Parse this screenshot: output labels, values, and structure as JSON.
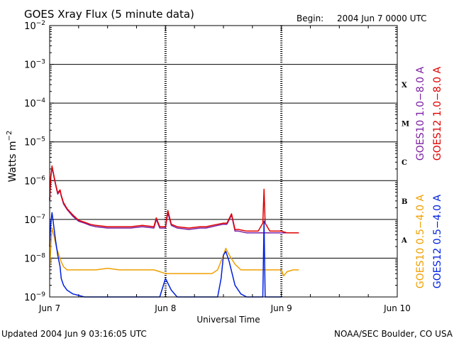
{
  "header": {
    "title": "GOES Xray Flux (5 minute data)",
    "begin_label": "Begin:",
    "begin_value": "2004 Jun 7 0000 UTC"
  },
  "footer": {
    "updated": "Updated 2004 Jun  9 03:16:05 UTC",
    "source": "NOAA/SEC Boulder, CO USA"
  },
  "colors": {
    "goes10_long": "#7b1fa2",
    "goes12_long": "#e00000",
    "goes10_short": "#f0a000",
    "goes12_short": "#0020e0",
    "grid": "#000000"
  },
  "chart_data": {
    "type": "line",
    "xlabel": "Universal Time",
    "ylabel": "Watts m",
    "ylabel_exponent": "−2",
    "x_ticks": [
      "Jun 7",
      "Jun 8",
      "Jun 9",
      "Jun 10"
    ],
    "xlim_days": [
      0,
      3
    ],
    "y_scale": "log",
    "ylim": [
      1e-09,
      0.01
    ],
    "y_ticks": [
      {
        "value": 0.01,
        "label": "10",
        "exp": "−2"
      },
      {
        "value": 0.001,
        "label": "10",
        "exp": "−3"
      },
      {
        "value": 0.0001,
        "label": "10",
        "exp": "−4"
      },
      {
        "value": 1e-05,
        "label": "10",
        "exp": "−5"
      },
      {
        "value": 1e-06,
        "label": "10",
        "exp": "−6"
      },
      {
        "value": 1e-07,
        "label": "10",
        "exp": "−7"
      },
      {
        "value": 1e-08,
        "label": "10",
        "exp": "−8"
      },
      {
        "value": 1e-09,
        "label": "10",
        "exp": "−9"
      }
    ],
    "flare_classes": [
      {
        "label": "X",
        "value": 0.0003
      },
      {
        "label": "M",
        "value": 3e-05
      },
      {
        "label": "C",
        "value": 3e-06
      },
      {
        "label": "B",
        "value": 3e-07
      },
      {
        "label": "A",
        "value": 3e-08
      }
    ],
    "legend": [
      {
        "text": "GOES10 1.0−8.0 A",
        "color": "#7b1fa2",
        "group": "long",
        "slot": 0
      },
      {
        "text": "GOES12 1.0−8.0 A",
        "color": "#e00000",
        "group": "long",
        "slot": 1
      },
      {
        "text": "GOES10 0.5−4.0 A",
        "color": "#f0a000",
        "group": "short",
        "slot": 0
      },
      {
        "text": "GOES12 0.5−4.0 A",
        "color": "#0020e0",
        "group": "short",
        "slot": 1
      }
    ],
    "series": [
      {
        "name": "GOES10 1.0−8.0 A",
        "color": "#7b1fa2",
        "x": [
          0,
          0.01,
          0.02,
          0.03,
          0.05,
          0.07,
          0.09,
          0.1,
          0.12,
          0.15,
          0.2,
          0.25,
          0.3,
          0.35,
          0.4,
          0.5,
          0.6,
          0.7,
          0.8,
          0.9,
          0.92,
          0.95,
          1.0,
          1.02,
          1.05,
          1.1,
          1.2,
          1.3,
          1.35,
          1.4,
          1.45,
          1.5,
          1.53,
          1.57,
          1.6,
          1.63,
          1.7,
          1.8,
          1.85,
          1.9,
          1.95,
          2.0,
          2.05,
          2.1,
          2.15
        ],
        "y": [
          3e-07,
          1.2e-06,
          2.2e-06,
          1.6e-06,
          8e-07,
          4.5e-07,
          5.5e-07,
          4e-07,
          2.5e-07,
          1.8e-07,
          1.2e-07,
          9e-08,
          8e-08,
          7e-08,
          6.5e-08,
          6e-08,
          6e-08,
          6e-08,
          6.5e-08,
          6e-08,
          1e-07,
          6e-08,
          6e-08,
          1.5e-07,
          7e-08,
          6e-08,
          5.5e-08,
          6e-08,
          6e-08,
          6.5e-08,
          7e-08,
          7.5e-08,
          7.5e-08,
          1.3e-07,
          5e-08,
          5e-08,
          4.5e-08,
          4.5e-08,
          4.5e-08,
          4.5e-08,
          4.5e-08,
          4.5e-08,
          4.5e-08,
          4.5e-08,
          4.5e-08
        ]
      },
      {
        "name": "GOES12 1.0−8.0 A",
        "color": "#e00000",
        "x": [
          0,
          0.01,
          0.02,
          0.03,
          0.05,
          0.07,
          0.09,
          0.1,
          0.12,
          0.15,
          0.2,
          0.25,
          0.3,
          0.35,
          0.4,
          0.5,
          0.6,
          0.7,
          0.8,
          0.9,
          0.92,
          0.95,
          1.0,
          1.02,
          1.05,
          1.1,
          1.2,
          1.3,
          1.35,
          1.4,
          1.45,
          1.5,
          1.53,
          1.57,
          1.6,
          1.63,
          1.7,
          1.8,
          1.84,
          1.85,
          1.86,
          1.9,
          1.95,
          2.0,
          2.05,
          2.1,
          2.15
        ],
        "y": [
          3.2e-07,
          1.3e-06,
          2.4e-06,
          1.7e-06,
          8.5e-07,
          4.8e-07,
          5.8e-07,
          4.2e-07,
          2.7e-07,
          1.9e-07,
          1.3e-07,
          9.5e-08,
          8.5e-08,
          7.5e-08,
          7e-08,
          6.5e-08,
          6.5e-08,
          6.5e-08,
          7e-08,
          6.5e-08,
          1.1e-07,
          6.5e-08,
          6.5e-08,
          1.7e-07,
          7.5e-08,
          6.5e-08,
          6e-08,
          6.5e-08,
          6.5e-08,
          7e-08,
          7.5e-08,
          8e-08,
          8e-08,
          1.4e-07,
          5.5e-08,
          5.5e-08,
          5e-08,
          5e-08,
          8e-08,
          6e-07,
          8e-08,
          5e-08,
          5e-08,
          5e-08,
          4.5e-08,
          4.5e-08,
          4.5e-08
        ]
      },
      {
        "name": "GOES10 0.5−4.0 A",
        "color": "#f0a000",
        "x": [
          0,
          0.02,
          0.04,
          0.06,
          0.08,
          0.1,
          0.12,
          0.15,
          0.2,
          0.3,
          0.4,
          0.5,
          0.6,
          0.7,
          0.8,
          0.9,
          0.95,
          1.0,
          1.1,
          1.2,
          1.3,
          1.4,
          1.45,
          1.5,
          1.52,
          1.55,
          1.6,
          1.65,
          1.7,
          1.8,
          1.9,
          1.95,
          2.0,
          2.02,
          2.05,
          2.1,
          2.15
        ],
        "y": [
          6e-09,
          6e-08,
          3.5e-08,
          1.8e-08,
          1.2e-08,
          8e-09,
          6e-09,
          5e-09,
          5e-09,
          5e-09,
          5e-09,
          5.5e-09,
          5e-09,
          5e-09,
          5e-09,
          5e-09,
          4.5e-09,
          4e-09,
          4e-09,
          4e-09,
          4e-09,
          4e-09,
          5e-09,
          1.2e-08,
          1.8e-08,
          1.2e-08,
          7e-09,
          5e-09,
          5e-09,
          5e-09,
          5e-09,
          5e-09,
          5e-09,
          3.5e-09,
          4.5e-09,
          5e-09,
          5e-09
        ]
      },
      {
        "name": "GOES12 0.5−4.0 A",
        "color": "#0020e0",
        "x": [
          0,
          0.01,
          0.02,
          0.03,
          0.05,
          0.07,
          0.09,
          0.1,
          0.12,
          0.15,
          0.2,
          0.3,
          0.4,
          0.5,
          0.6,
          0.7,
          0.8,
          0.9,
          0.95,
          1.0,
          1.05,
          1.1,
          1.2,
          1.3,
          1.4,
          1.45,
          1.48,
          1.5,
          1.52,
          1.55,
          1.6,
          1.65,
          1.7,
          1.8,
          1.84,
          1.85,
          1.86,
          1.9,
          1.95,
          2.0
        ],
        "y": [
          2e-08,
          8e-08,
          1.5e-07,
          9e-08,
          3e-08,
          1.2e-08,
          6e-09,
          3e-09,
          2e-09,
          1.5e-09,
          1.2e-09,
          1e-09,
          1e-09,
          1e-09,
          1e-09,
          1e-09,
          1e-09,
          1e-09,
          1e-09,
          3e-09,
          1.5e-09,
          1e-09,
          1e-09,
          1e-09,
          1e-09,
          1e-09,
          3e-09,
          1.2e-08,
          1.5e-08,
          8e-09,
          2e-09,
          1.2e-09,
          1e-09,
          1e-09,
          1e-09,
          9e-08,
          1e-09,
          1e-09,
          1e-09,
          1e-09
        ]
      }
    ]
  }
}
